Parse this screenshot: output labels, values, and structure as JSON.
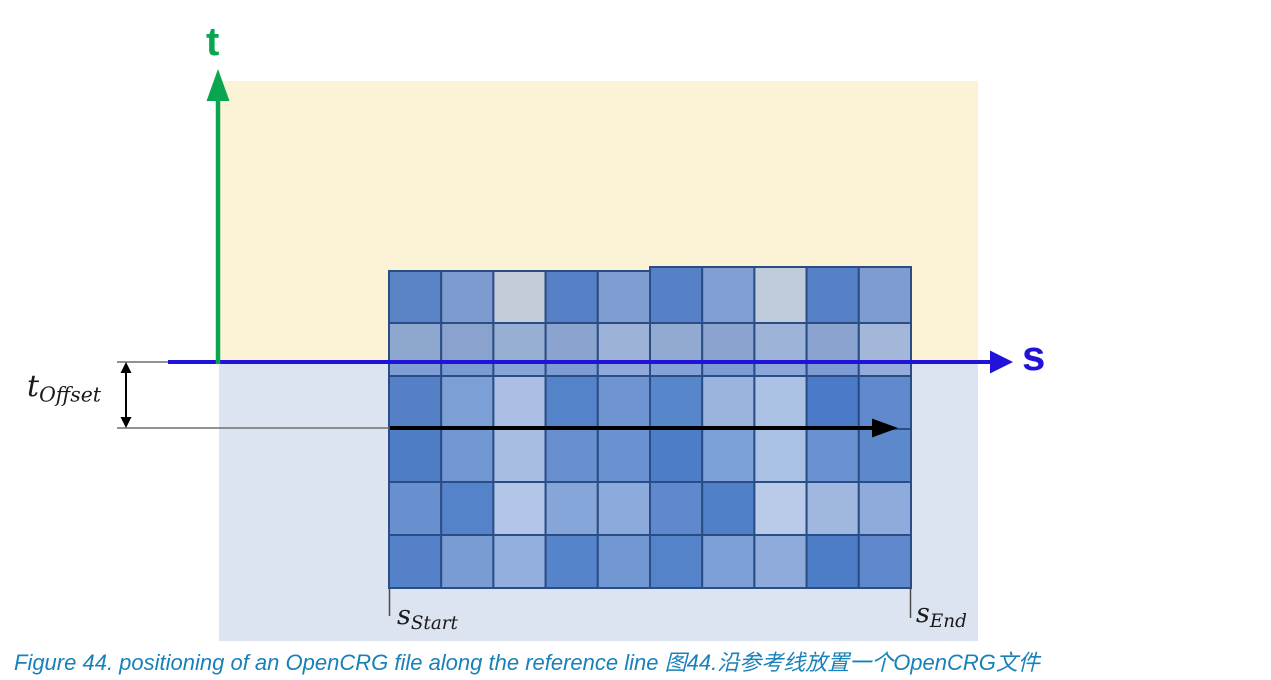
{
  "colors": {
    "region_above": "#fcf2d5",
    "region_below": "#dde4f1",
    "axis_t": "#0aa64f",
    "axis_s": "#2012d9",
    "grid_border": "#2b4d86",
    "measure_line": "#6e6e6e",
    "measure_arrow": "#000000",
    "data_arrow": "#000000",
    "caption": "#1981b9"
  },
  "axes": {
    "t_label": "t",
    "s_label": "s"
  },
  "annotations": {
    "t_offset": {
      "base": "t",
      "sub": "Offset"
    },
    "s_start": {
      "base": "s",
      "sub": "Start"
    },
    "s_end": {
      "base": "s",
      "sub": "End"
    }
  },
  "caption": {
    "text": "Figure 44. positioning of an OpenCRG file along the reference line 图44.沿参考线放置一个OpenCRG文件"
  },
  "grid": {
    "type": "heatmap",
    "columns": 10,
    "row_bands": 7,
    "cell_colors": [
      [
        "#5b84c6",
        "#7d9bce",
        "#c2cdd9",
        "#5781c6",
        "#7f9dd0",
        "#5781c6",
        "#809ed1",
        "#c0ccd9",
        "#5781c6",
        "#7e9cd0"
      ],
      [
        "#8ea7cf",
        "#8aa3ce",
        "#98afd4",
        "#8aa4cf",
        "#9cb2d6",
        "#92aad2",
        "#8aa4cf",
        "#9db3d7",
        "#8aa4cf",
        "#a3b7d9"
      ],
      [
        "#7f9ed6",
        "#7a9ad3",
        "#88a5d9",
        "#7d9cd4",
        "#8fa9da",
        "#84a2d8",
        "#7d9cd4",
        "#8ba7da",
        "#7d9cd4",
        "#93acdc"
      ],
      [
        "#5680c5",
        "#7ca0d6",
        "#aabfe3",
        "#5583ca",
        "#6e95d1",
        "#5886cb",
        "#9ab4de",
        "#abc2e5",
        "#4a7ac8",
        "#6189cd"
      ],
      [
        "#4e7cc5",
        "#7298d3",
        "#a7bde2",
        "#6890cf",
        "#6a92d1",
        "#4d7dc8",
        "#7ca0d8",
        "#aac1e6",
        "#6a92d1",
        "#5c88cc"
      ],
      [
        "#6890cf",
        "#5583c9",
        "#b3c6e8",
        "#86a6da",
        "#8cabdc",
        "#6088cc",
        "#5080c8",
        "#b9cbe9",
        "#a0b8e0",
        "#8fabdc"
      ],
      [
        "#5581c8",
        "#7a9cd5",
        "#93afdd",
        "#5684ca",
        "#7298d3",
        "#5583c9",
        "#7c9fd7",
        "#8fabdc",
        "#4d7dc7",
        "#6088cc"
      ]
    ]
  }
}
